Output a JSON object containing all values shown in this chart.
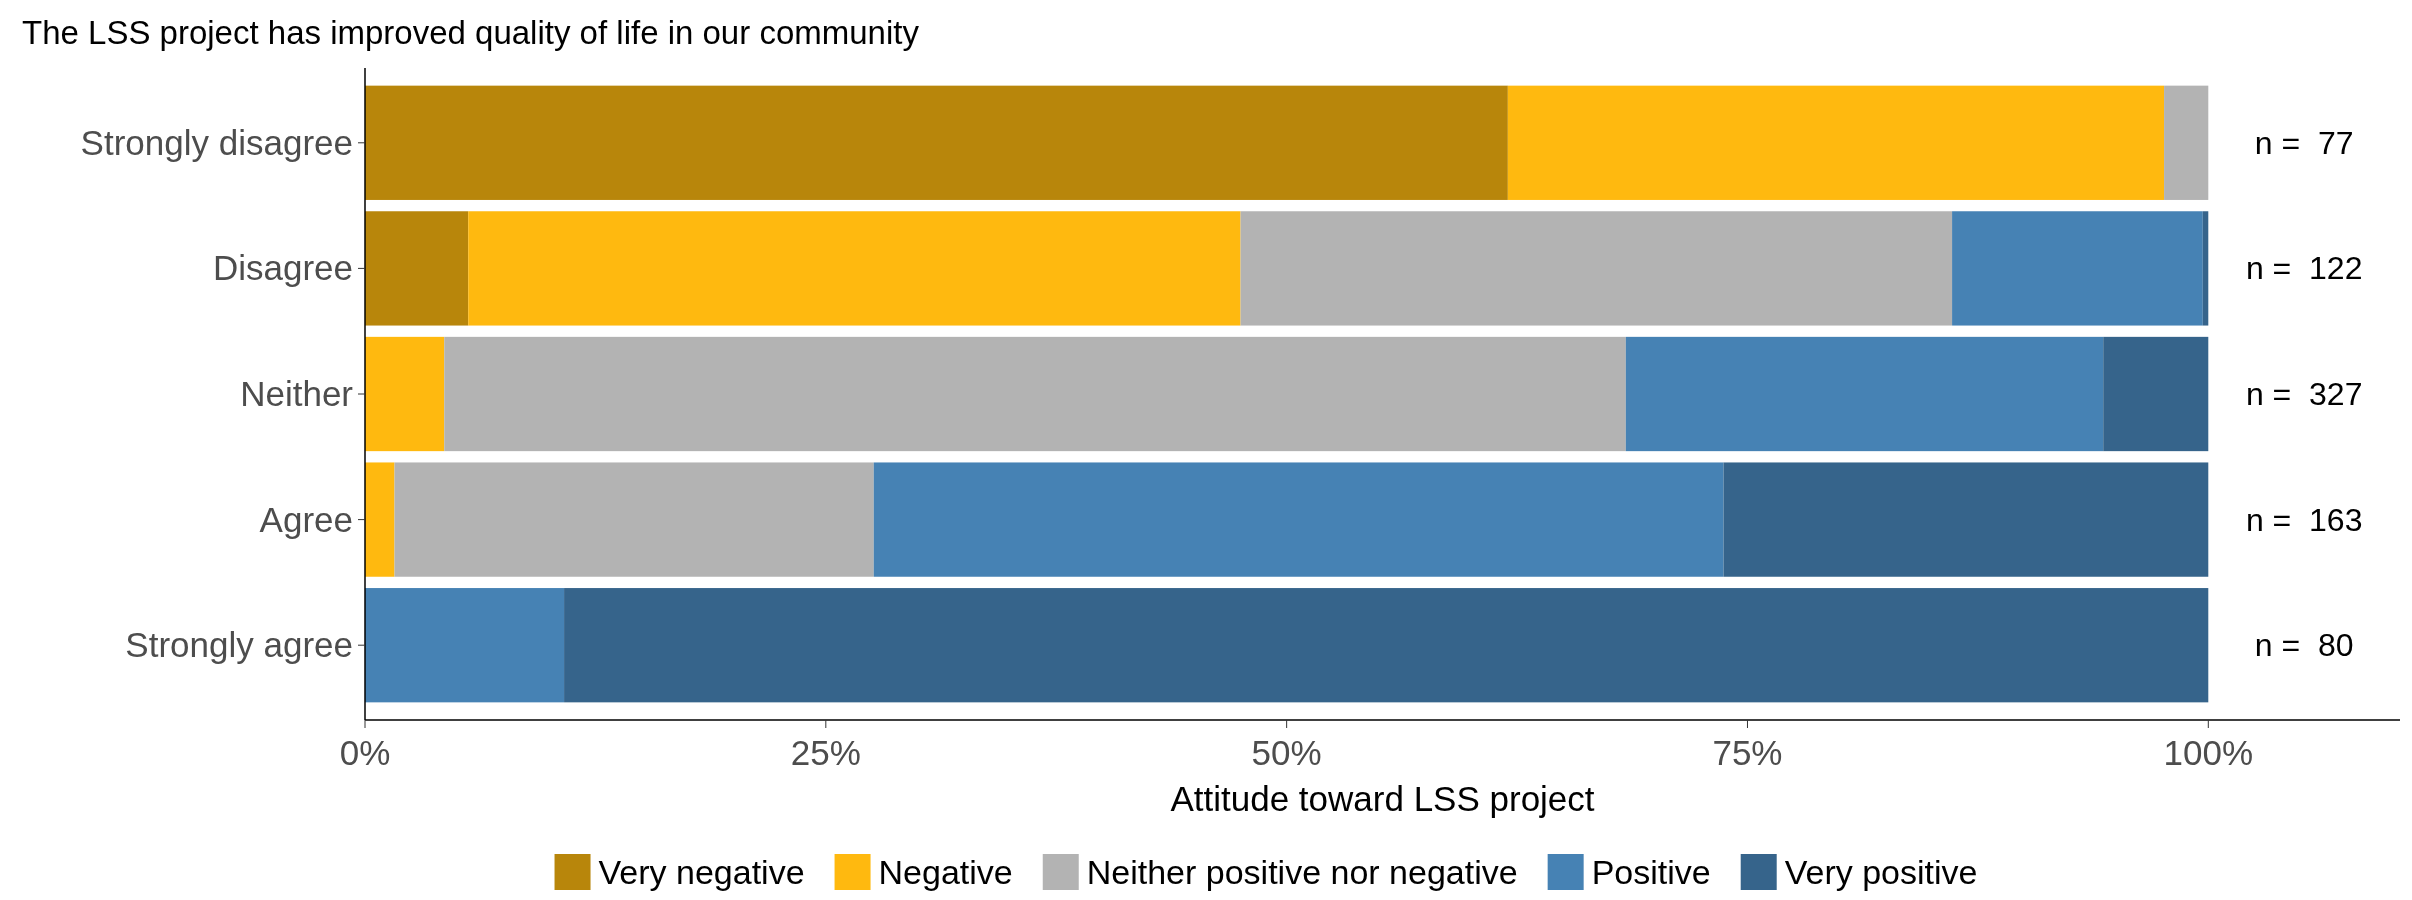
{
  "chart_data": {
    "type": "bar",
    "orientation": "horizontal",
    "stacked": true,
    "title": "The LSS project has improved quality of life in our community",
    "xlabel": "Attitude toward LSS project",
    "categories": [
      "Strongly disagree",
      "Disagree",
      "Neither",
      "Agree",
      "Strongly agree"
    ],
    "series": [
      {
        "name": "Very negative",
        "color": "#b8860b",
        "values": [
          62.0,
          5.6,
          null,
          null,
          null
        ]
      },
      {
        "name": "Negative",
        "color": "#ffb90f",
        "values": [
          35.6,
          41.9,
          4.3,
          1.6,
          null
        ]
      },
      {
        "name": "Neither positive nor negative",
        "color": "#b3b3b3",
        "values": [
          2.4,
          38.6,
          64.1,
          26.0,
          null
        ]
      },
      {
        "name": "Positive",
        "color": "#4682b4",
        "values": [
          null,
          13.6,
          25.9,
          46.1,
          10.8
        ]
      },
      {
        "name": "Very positive",
        "color": "#36648b",
        "values": [
          null,
          0.3,
          5.7,
          26.3,
          89.2
        ]
      }
    ],
    "xlim": [
      0,
      110.4
    ],
    "xticks": [
      {
        "value": 0,
        "label": "0%"
      },
      {
        "value": 25,
        "label": "25%"
      },
      {
        "value": 50,
        "label": "50%"
      },
      {
        "value": 75,
        "label": "75%"
      },
      {
        "value": 100,
        "label": "100%"
      }
    ],
    "annotations": [
      "n =  77",
      "n =  122",
      "n =  327",
      "n =  163",
      "n =  80"
    ],
    "legend": "bottom",
    "grid": false
  }
}
